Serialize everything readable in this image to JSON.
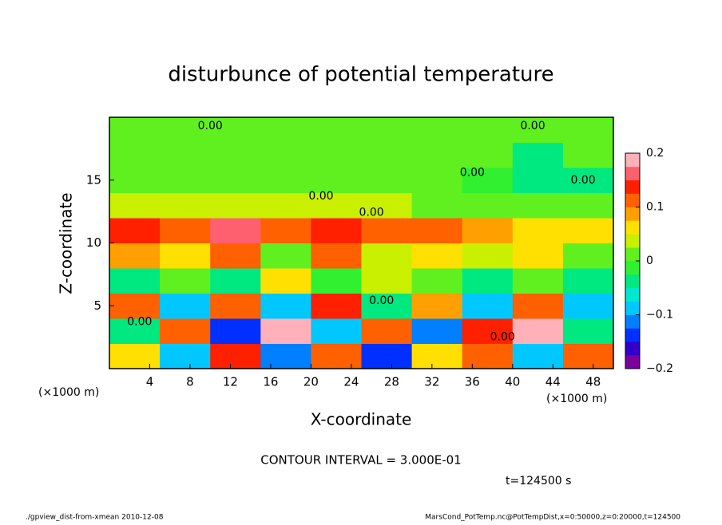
{
  "chart_data": {
    "type": "heatmap",
    "title": "disturbunce of potential temperature",
    "xlabel": "X-coordinate",
    "ylabel": "Z-coordinate",
    "x_unit": "(×1000 m)",
    "xlim": [
      0,
      50
    ],
    "xticks": [
      4,
      8,
      12,
      16,
      20,
      24,
      28,
      32,
      36,
      40,
      44,
      48
    ],
    "ylim": [
      0,
      20
    ],
    "yticks": [
      5,
      10,
      15
    ],
    "xbins": [
      0,
      5,
      10,
      15,
      20,
      25,
      30,
      35,
      40,
      45,
      50
    ],
    "zbins": [
      0,
      2,
      4,
      6,
      8,
      10,
      12,
      14,
      16,
      18,
      20
    ],
    "values": [
      [
        0.05,
        -0.1,
        0.15,
        -0.12,
        0.1,
        -0.15,
        0.05,
        0.12,
        -0.1,
        0.1
      ],
      [
        -0.05,
        0.12,
        -0.15,
        0.18,
        -0.08,
        0.1,
        -0.12,
        0.15,
        0.2,
        -0.05
      ],
      [
        0.1,
        -0.08,
        0.12,
        -0.1,
        0.15,
        -0.05,
        0.08,
        -0.1,
        0.12,
        -0.08
      ],
      [
        -0.05,
        0.02,
        -0.03,
        0.05,
        -0.02,
        0.03,
        0,
        -0.04,
        0.02,
        -0.03
      ],
      [
        0.08,
        0.05,
        0.1,
        0.02,
        0.12,
        0.04,
        0.06,
        0.03,
        0.05,
        0.02
      ],
      [
        0.15,
        0.1,
        0.16,
        0.12,
        0.14,
        0.1,
        0.12,
        0.08,
        0.06,
        0.05
      ],
      [
        0.03,
        0.03,
        0.03,
        0.03,
        0.03,
        0.03,
        0.02,
        0.02,
        0.01,
        0.02
      ],
      [
        0.01,
        0.01,
        0.01,
        0.01,
        0.01,
        0.01,
        0,
        -0.02,
        -0.05,
        -0.03
      ],
      [
        0,
        0,
        0,
        0,
        0,
        0,
        0,
        0.02,
        -0.03,
        0.01
      ],
      [
        0,
        0,
        0,
        0,
        0,
        0,
        0,
        0,
        0,
        0
      ]
    ],
    "clim": [
      -0.2,
      0.2
    ],
    "cticks": [
      {
        "value": -0.2,
        "label": "−0.2"
      },
      {
        "value": -0.1,
        "label": "−0.1"
      },
      0,
      0.1,
      0.2
    ],
    "colormap": [
      "#7a00a0",
      "#3000c8",
      "#0030ff",
      "#0080ff",
      "#00c8ff",
      "#00e8d0",
      "#00e880",
      "#30f030",
      "#60f020",
      "#c8f000",
      "#ffe000",
      "#ffa000",
      "#ff6000",
      "#ff2000",
      "#ff6070",
      "#ffb0b8"
    ],
    "contour_labels": [
      {
        "x": 10,
        "z": 19.3,
        "label": "0.00"
      },
      {
        "x": 42,
        "z": 19.3,
        "label": "0.00"
      },
      {
        "x": 36,
        "z": 15.6,
        "label": "0.00"
      },
      {
        "x": 21,
        "z": 13.7,
        "label": "0.00"
      },
      {
        "x": 26,
        "z": 12.4,
        "label": "0.00"
      },
      {
        "x": 47,
        "z": 15,
        "label": "0.00"
      },
      {
        "x": 3,
        "z": 3.7,
        "label": "0.00"
      },
      {
        "x": 27,
        "z": 5.4,
        "label": "0.00"
      },
      {
        "x": 39,
        "z": 2.5,
        "label": "0.00"
      }
    ],
    "annotations": [
      "CONTOUR INTERVAL = 3.000E-01",
      "t=124500 s"
    ],
    "footer_left": "./gpview_dist-from-xmean  2010-12-08",
    "footer_right": "MarsCond_PotTemp.nc@PotTempDist,x=0:50000,z=0:20000,t=124500"
  }
}
